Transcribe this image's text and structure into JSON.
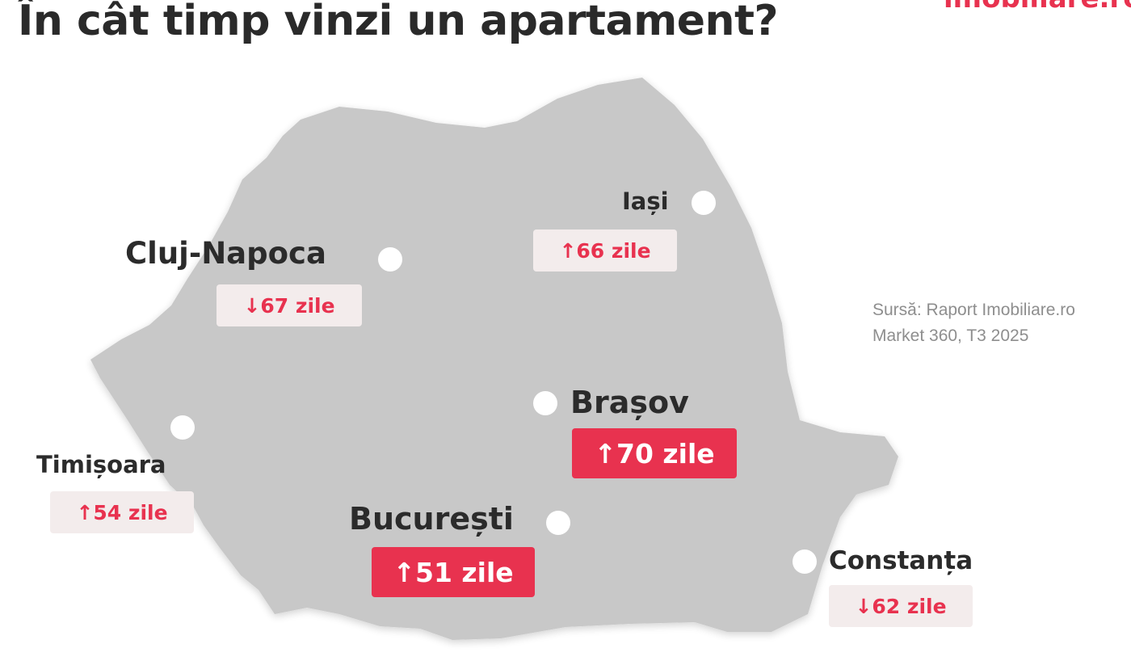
{
  "title": "În cât timp vinzi un apartament?",
  "brand": "imobiliare.ro",
  "source": {
    "line1": "Sursă: Raport Imobiliare.ro",
    "line2": "Market 360, T3 2025"
  },
  "colors": {
    "accent": "#e8324f",
    "map_fill": "#c8c8c8",
    "badge_light": "#f3ecec",
    "text_dark": "#2b2b2b"
  },
  "cities": [
    {
      "id": "cluj",
      "name": "Cluj-Napoca",
      "value": "↓67 zile",
      "days": 67,
      "trend": "down"
    },
    {
      "id": "iasi",
      "name": "Iași",
      "value": "↑66 zile",
      "days": 66,
      "trend": "up"
    },
    {
      "id": "brasov",
      "name": "Brașov",
      "value": "↑70 zile",
      "days": 70,
      "trend": "up"
    },
    {
      "id": "timisoara",
      "name": "Timișoara",
      "value": "↑54 zile",
      "days": 54,
      "trend": "up"
    },
    {
      "id": "bucuresti",
      "name": "București",
      "value": "↑51 zile",
      "days": 51,
      "trend": "up"
    },
    {
      "id": "constanta",
      "name": "Constanța",
      "value": "↓62 zile",
      "days": 62,
      "trend": "down"
    }
  ]
}
